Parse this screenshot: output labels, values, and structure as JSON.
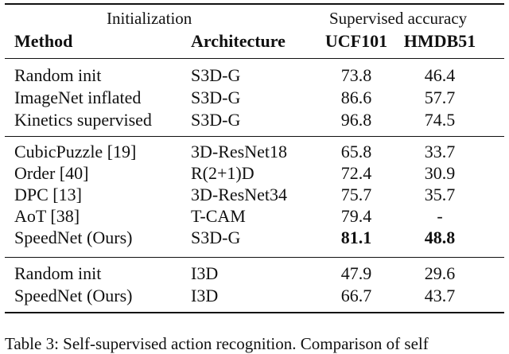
{
  "table": {
    "group_headers": {
      "initialization": "Initialization",
      "supervised": "Supervised accuracy"
    },
    "columns": [
      "Method",
      "Architecture",
      "UCF101",
      "HMDB51"
    ],
    "sections": [
      [
        {
          "method": "Random init",
          "arch": "S3D-G",
          "ucf": "73.8",
          "hmdb": "46.4"
        },
        {
          "method": "ImageNet inflated",
          "arch": "S3D-G",
          "ucf": "86.6",
          "hmdb": "57.7"
        },
        {
          "method": "Kinetics supervised",
          "arch": "S3D-G",
          "ucf": "96.8",
          "hmdb": "74.5"
        }
      ],
      [
        {
          "method": "CubicPuzzle [19]",
          "arch": "3D-ResNet18",
          "ucf": "65.8",
          "hmdb": "33.7"
        },
        {
          "method": "Order [40]",
          "arch": "R(2+1)D",
          "ucf": "72.4",
          "hmdb": "30.9"
        },
        {
          "method": "DPC [13]",
          "arch": "3D-ResNet34",
          "ucf": "75.7",
          "hmdb": "35.7"
        },
        {
          "method": "AoT [38]",
          "arch": "T-CAM",
          "ucf": "79.4",
          "hmdb": "-"
        },
        {
          "method": "SpeedNet (Ours)",
          "arch": "S3D-G",
          "ucf": "81.1",
          "hmdb": "48.8"
        }
      ],
      [
        {
          "method": "Random init",
          "arch": "I3D",
          "ucf": "47.9",
          "hmdb": "29.6"
        },
        {
          "method": "SpeedNet (Ours)",
          "arch": "I3D",
          "ucf": "66.7",
          "hmdb": "43.7"
        }
      ]
    ]
  },
  "caption": "Table 3: Self-supervised action recognition. Comparison of self"
}
